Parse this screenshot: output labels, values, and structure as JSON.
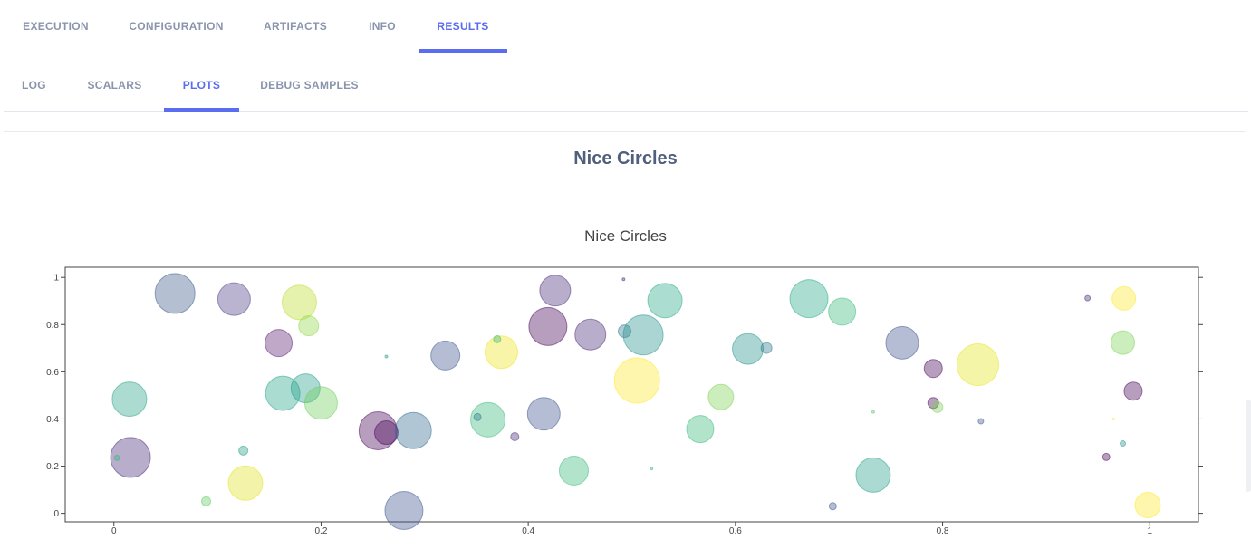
{
  "main_tabs": [
    {
      "label": "EXECUTION",
      "active": false
    },
    {
      "label": "CONFIGURATION",
      "active": false
    },
    {
      "label": "ARTIFACTS",
      "active": false
    },
    {
      "label": "INFO",
      "active": false
    },
    {
      "label": "RESULTS",
      "active": true
    }
  ],
  "sub_tabs": [
    {
      "label": "LOG",
      "active": false
    },
    {
      "label": "SCALARS",
      "active": false
    },
    {
      "label": "PLOTS",
      "active": true
    },
    {
      "label": "DEBUG SAMPLES",
      "active": false
    }
  ],
  "panel": {
    "title": "Nice Circles"
  },
  "colors": {
    "accent": "#5a6cf0",
    "tab_text": "#8a95ad",
    "panel_title": "#505f7c"
  },
  "chart_data": {
    "type": "scatter",
    "title": "Nice Circles",
    "xlim": [
      -0.047,
      1.047
    ],
    "ylim": [
      -0.036,
      1.043
    ],
    "x_ticks": [
      "0",
      "0.2",
      "0.4",
      "0.6",
      "0.8",
      "1"
    ],
    "y_ticks": [
      "0",
      "0.2",
      "0.4",
      "0.6",
      "0.8",
      "1"
    ],
    "grid": false,
    "colorscale": "viridis",
    "points": [
      {
        "x": 0.059,
        "y": 0.932,
        "size": 22,
        "color": "#3b5a8a"
      },
      {
        "x": 0.116,
        "y": 0.908,
        "size": 18,
        "color": "#4a3a86"
      },
      {
        "x": 0.179,
        "y": 0.894,
        "size": 19,
        "color": "#b9de28"
      },
      {
        "x": 0.188,
        "y": 0.795,
        "size": 11,
        "color": "#8fd744"
      },
      {
        "x": 0.159,
        "y": 0.722,
        "size": 15,
        "color": "#5a1a6e"
      },
      {
        "x": 0.015,
        "y": 0.484,
        "size": 19,
        "color": "#26a185"
      },
      {
        "x": 0.016,
        "y": 0.237,
        "size": 22,
        "color": "#482878"
      },
      {
        "x": 0.003,
        "y": 0.235,
        "size": 3,
        "color": "#35b779"
      },
      {
        "x": 0.163,
        "y": 0.509,
        "size": 19,
        "color": "#20a486"
      },
      {
        "x": 0.185,
        "y": 0.53,
        "size": 16,
        "color": "#1f9e89"
      },
      {
        "x": 0.2,
        "y": 0.468,
        "size": 18,
        "color": "#6ccd5a"
      },
      {
        "x": 0.125,
        "y": 0.266,
        "size": 5,
        "color": "#1f9e89"
      },
      {
        "x": 0.089,
        "y": 0.051,
        "size": 5,
        "color": "#5ec962"
      },
      {
        "x": 0.127,
        "y": 0.128,
        "size": 19,
        "color": "#e0e31c"
      },
      {
        "x": 0.263,
        "y": 0.665,
        "size": 1.5,
        "color": "#1f9e89"
      },
      {
        "x": 0.255,
        "y": 0.35,
        "size": 21,
        "color": "#440154"
      },
      {
        "x": 0.263,
        "y": 0.342,
        "size": 13,
        "color": "#440154"
      },
      {
        "x": 0.289,
        "y": 0.351,
        "size": 20,
        "color": "#31688e"
      },
      {
        "x": 0.28,
        "y": 0.012,
        "size": 21,
        "color": "#3b528b"
      },
      {
        "x": 0.32,
        "y": 0.669,
        "size": 16,
        "color": "#3b528b"
      },
      {
        "x": 0.374,
        "y": 0.683,
        "size": 18,
        "color": "#ece51b"
      },
      {
        "x": 0.37,
        "y": 0.738,
        "size": 4,
        "color": "#35b779"
      },
      {
        "x": 0.361,
        "y": 0.397,
        "size": 19,
        "color": "#35b779"
      },
      {
        "x": 0.351,
        "y": 0.408,
        "size": 4,
        "color": "#2a788e"
      },
      {
        "x": 0.387,
        "y": 0.325,
        "size": 4.5,
        "color": "#482878"
      },
      {
        "x": 0.415,
        "y": 0.422,
        "size": 18,
        "color": "#3b528b"
      },
      {
        "x": 0.419,
        "y": 0.792,
        "size": 21,
        "color": "#440154"
      },
      {
        "x": 0.426,
        "y": 0.944,
        "size": 17,
        "color": "#482878"
      },
      {
        "x": 0.46,
        "y": 0.758,
        "size": 17,
        "color": "#482878"
      },
      {
        "x": 0.444,
        "y": 0.181,
        "size": 16,
        "color": "#35b779"
      },
      {
        "x": 0.492,
        "y": 0.992,
        "size": 1.5,
        "color": "#482878"
      },
      {
        "x": 0.493,
        "y": 0.772,
        "size": 7,
        "color": "#2a788e"
      },
      {
        "x": 0.511,
        "y": 0.756,
        "size": 22,
        "color": "#21918c"
      },
      {
        "x": 0.532,
        "y": 0.902,
        "size": 19,
        "color": "#22a884"
      },
      {
        "x": 0.505,
        "y": 0.563,
        "size": 25,
        "color": "#fde725"
      },
      {
        "x": 0.519,
        "y": 0.19,
        "size": 1.5,
        "color": "#35b779"
      },
      {
        "x": 0.566,
        "y": 0.357,
        "size": 15,
        "color": "#35b779"
      },
      {
        "x": 0.586,
        "y": 0.493,
        "size": 14,
        "color": "#7ad151"
      },
      {
        "x": 0.612,
        "y": 0.697,
        "size": 17,
        "color": "#21918c"
      },
      {
        "x": 0.63,
        "y": 0.701,
        "size": 6,
        "color": "#2a788e"
      },
      {
        "x": 0.671,
        "y": 0.91,
        "size": 21,
        "color": "#22a884"
      },
      {
        "x": 0.703,
        "y": 0.855,
        "size": 15,
        "color": "#35b779"
      },
      {
        "x": 0.733,
        "y": 0.162,
        "size": 19,
        "color": "#1f9e89"
      },
      {
        "x": 0.733,
        "y": 0.43,
        "size": 1.5,
        "color": "#5ec962"
      },
      {
        "x": 0.694,
        "y": 0.03,
        "size": 4,
        "color": "#3b528b"
      },
      {
        "x": 0.761,
        "y": 0.723,
        "size": 18,
        "color": "#3b528b"
      },
      {
        "x": 0.791,
        "y": 0.614,
        "size": 10,
        "color": "#440154"
      },
      {
        "x": 0.791,
        "y": 0.468,
        "size": 6,
        "color": "#440154"
      },
      {
        "x": 0.795,
        "y": 0.45,
        "size": 6,
        "color": "#7ad151"
      },
      {
        "x": 0.834,
        "y": 0.63,
        "size": 23,
        "color": "#e5e419"
      },
      {
        "x": 0.837,
        "y": 0.39,
        "size": 3,
        "color": "#3b528b"
      },
      {
        "x": 0.94,
        "y": 0.912,
        "size": 3,
        "color": "#482878"
      },
      {
        "x": 0.975,
        "y": 0.911,
        "size": 13,
        "color": "#fde725"
      },
      {
        "x": 0.974,
        "y": 0.724,
        "size": 13,
        "color": "#7ad151"
      },
      {
        "x": 0.984,
        "y": 0.518,
        "size": 10,
        "color": "#440154"
      },
      {
        "x": 0.965,
        "y": 0.4,
        "size": 1,
        "color": "#fde725"
      },
      {
        "x": 0.974,
        "y": 0.296,
        "size": 3,
        "color": "#21918c"
      },
      {
        "x": 0.958,
        "y": 0.239,
        "size": 4,
        "color": "#440154"
      },
      {
        "x": 0.998,
        "y": 0.035,
        "size": 14,
        "color": "#fde725"
      }
    ]
  }
}
